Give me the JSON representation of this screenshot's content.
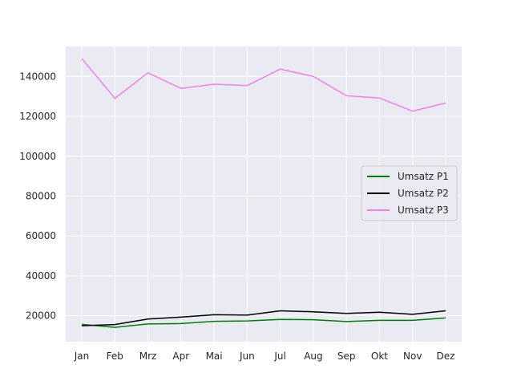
{
  "chart_data": {
    "type": "line",
    "title": "",
    "xlabel": "",
    "ylabel": "",
    "categories": [
      "Jan",
      "Feb",
      "Mrz",
      "Apr",
      "Mai",
      "Jun",
      "Jul",
      "Aug",
      "Sep",
      "Okt",
      "Nov",
      "Dez"
    ],
    "ylim": [
      7000,
      155000
    ],
    "yticks": [
      20000,
      40000,
      60000,
      80000,
      100000,
      120000,
      140000
    ],
    "grid": true,
    "legend_position": "center-right",
    "series": [
      {
        "name": "Umsatz P1",
        "color": "#008000",
        "values": [
          15700,
          14200,
          15900,
          16100,
          17200,
          17400,
          18200,
          18000,
          17100,
          17700,
          17700,
          18900
        ]
      },
      {
        "name": "Umsatz P2",
        "color": "#000000",
        "values": [
          15000,
          15600,
          18400,
          19300,
          20500,
          20300,
          22500,
          22000,
          21200,
          21800,
          20700,
          22500
        ]
      },
      {
        "name": "Umsatz P3",
        "color": "#ee82ee",
        "values": [
          149000,
          129000,
          141800,
          134000,
          136100,
          135400,
          143700,
          140000,
          130300,
          129200,
          122600,
          126700
        ]
      }
    ]
  }
}
